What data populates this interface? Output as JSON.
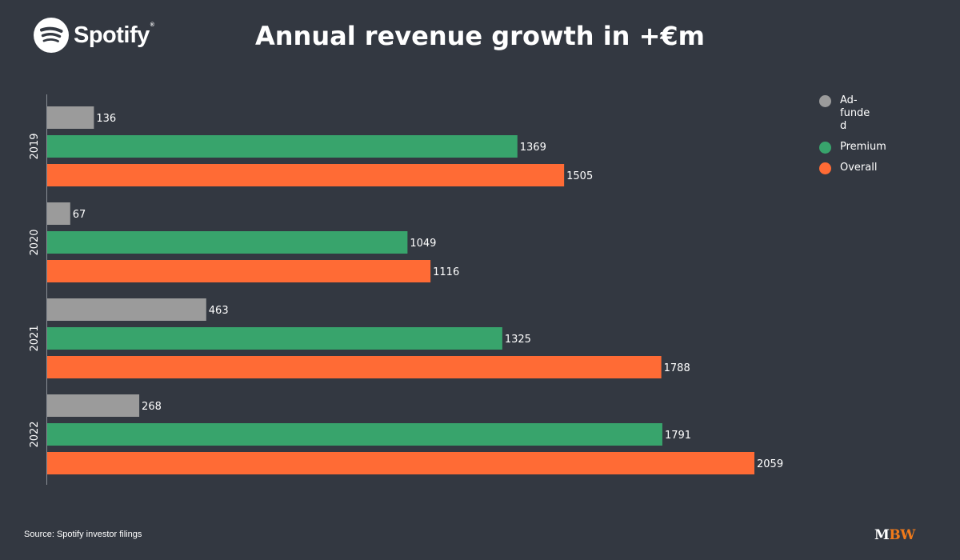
{
  "brand": {
    "name": "Spotify",
    "registered": "®"
  },
  "title": "Annual revenue growth in +€m",
  "source": "Source: Spotify investor filings",
  "publisher": {
    "m": "M",
    "bw": "BW"
  },
  "legend": [
    {
      "label": "Ad-funded",
      "color": "#9b9b9b"
    },
    {
      "label": "Premium",
      "color": "#38a46c"
    },
    {
      "label": "Overall",
      "color": "#ff6b35"
    }
  ],
  "chart_data": {
    "type": "bar",
    "orientation": "horizontal",
    "title": "Annual revenue growth in +€m",
    "categories": [
      "2019",
      "2020",
      "2021",
      "2022"
    ],
    "series": [
      {
        "name": "Ad-funded",
        "color": "#9b9b9b",
        "values": [
          136,
          67,
          463,
          268
        ]
      },
      {
        "name": "Premium",
        "color": "#38a46c",
        "values": [
          1369,
          1049,
          1325,
          1791
        ]
      },
      {
        "name": "Overall",
        "color": "#ff6b35",
        "values": [
          1505,
          1116,
          1788,
          2059
        ]
      }
    ],
    "xlabel": "",
    "ylabel": "",
    "xlim": [
      0,
      2059
    ],
    "grid": false,
    "legend_position": "top-right",
    "data_labels": true
  }
}
